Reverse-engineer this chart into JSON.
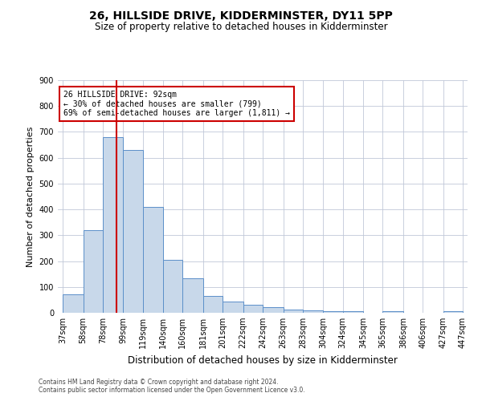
{
  "title": "26, HILLSIDE DRIVE, KIDDERMINSTER, DY11 5PP",
  "subtitle": "Size of property relative to detached houses in Kidderminster",
  "xlabel": "Distribution of detached houses by size in Kidderminster",
  "ylabel": "Number of detached properties",
  "footnote1": "Contains HM Land Registry data © Crown copyright and database right 2024.",
  "footnote2": "Contains public sector information licensed under the Open Government Licence v3.0.",
  "bar_color": "#c8d8ea",
  "bar_edge_color": "#5b8fc9",
  "vline_color": "#cc0000",
  "vline_position": 92,
  "annotation_text": "26 HILLSIDE DRIVE: 92sqm\n← 30% of detached houses are smaller (799)\n69% of semi-detached houses are larger (1,811) →",
  "annotation_box_color": "#ffffff",
  "annotation_box_edge": "#cc0000",
  "bin_edges": [
    37,
    58,
    78,
    99,
    119,
    140,
    160,
    181,
    201,
    222,
    242,
    263,
    283,
    304,
    324,
    345,
    365,
    386,
    406,
    427,
    447
  ],
  "bar_heights": [
    70,
    320,
    680,
    630,
    410,
    205,
    135,
    65,
    45,
    30,
    22,
    12,
    10,
    5,
    5,
    0,
    6,
    0,
    0,
    5
  ],
  "ylim": [
    0,
    900
  ],
  "yticks": [
    0,
    100,
    200,
    300,
    400,
    500,
    600,
    700,
    800,
    900
  ],
  "background_color": "#ffffff",
  "grid_color": "#c0c8d8",
  "title_fontsize": 10,
  "subtitle_fontsize": 8.5,
  "ylabel_fontsize": 8,
  "xlabel_fontsize": 8.5,
  "tick_fontsize": 7,
  "footnote_fontsize": 5.5
}
